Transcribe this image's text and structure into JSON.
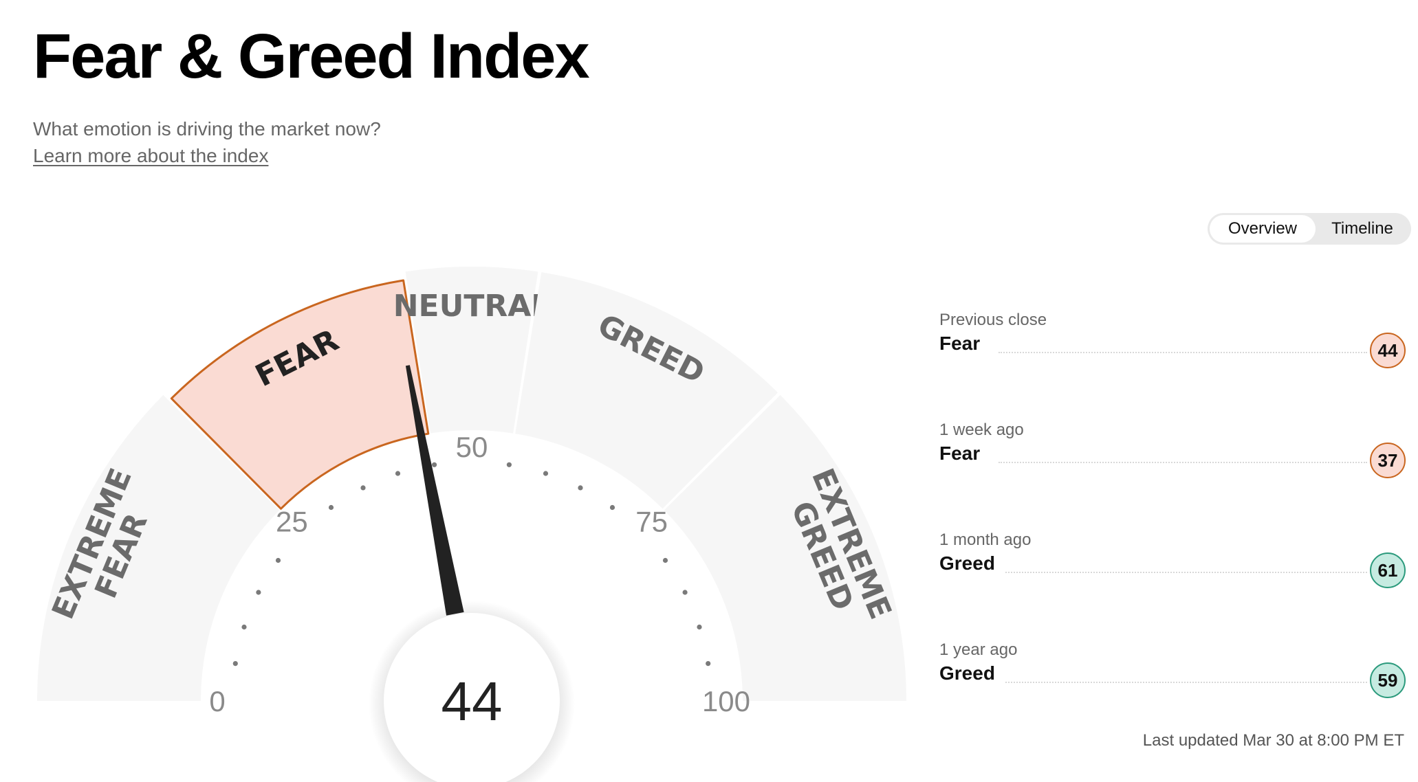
{
  "header": {
    "title": "Fear & Greed Index",
    "subtitle": "What emotion is driving the market now?",
    "learn_more": "Learn more about the index"
  },
  "view_toggle": {
    "options": [
      "Overview",
      "Timeline"
    ],
    "selected": "Overview"
  },
  "gauge": {
    "value": 44,
    "value_label": "44",
    "scale_min": 0,
    "scale_max": 100,
    "active_zone": "FEAR",
    "zones": [
      {
        "lines": [
          "EXTREME",
          "FEAR"
        ],
        "range": [
          0,
          25
        ]
      },
      {
        "lines": [
          "FEAR"
        ],
        "range": [
          25,
          45
        ]
      },
      {
        "lines": [
          "NEUTRAL"
        ],
        "range": [
          45,
          55
        ]
      },
      {
        "lines": [
          "GREED"
        ],
        "range": [
          55,
          75
        ]
      },
      {
        "lines": [
          "EXTREME",
          "GREED"
        ],
        "range": [
          75,
          100
        ]
      }
    ],
    "tick_labels": [
      "0",
      "25",
      "50",
      "75",
      "100"
    ],
    "colors": {
      "zone_fill": "#f6f6f6",
      "active_fill": "#fadbd3",
      "active_stroke": "#c9661f",
      "needle": "#222222",
      "label_text": "#6b6b6b",
      "active_label_text": "#222222"
    }
  },
  "history": [
    {
      "label": "Previous close",
      "rating": "Fear",
      "value": "44",
      "sentiment": "fear"
    },
    {
      "label": "1 week ago",
      "rating": "Fear",
      "value": "37",
      "sentiment": "fear"
    },
    {
      "label": "1 month ago",
      "rating": "Greed",
      "value": "61",
      "sentiment": "greed"
    },
    {
      "label": "1 year ago",
      "rating": "Greed",
      "value": "59",
      "sentiment": "greed"
    }
  ],
  "last_updated": "Last updated Mar 30 at 8:00 PM ET"
}
